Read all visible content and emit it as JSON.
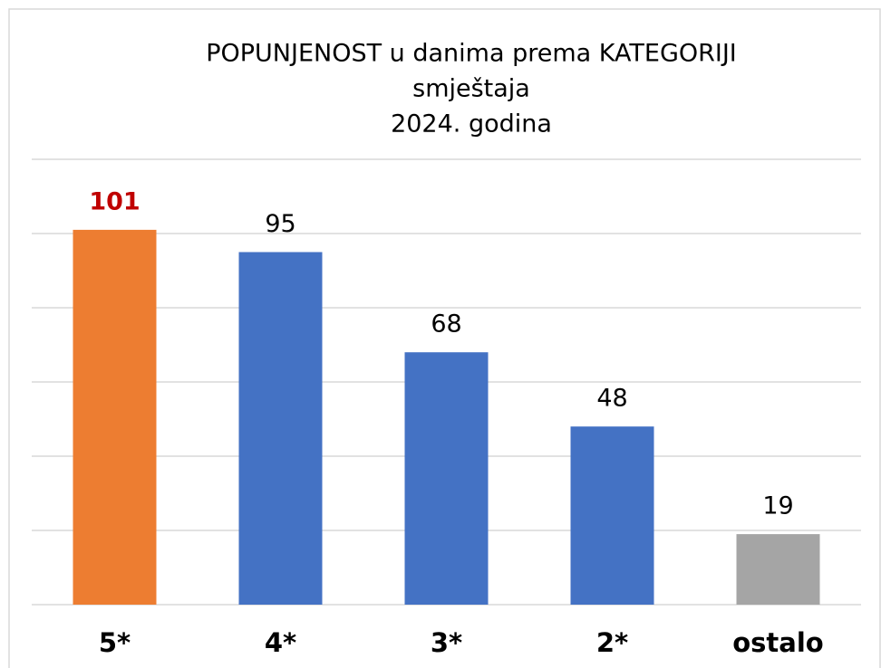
{
  "chart_data": {
    "type": "bar",
    "title": [
      "POPUNJENOST u danima prema KATEGORIJI",
      "smještaja",
      "2024. godina"
    ],
    "categories": [
      "5*",
      "4*",
      "3*",
      "2*",
      "ostalo"
    ],
    "values": [
      101,
      95,
      68,
      48,
      19
    ],
    "colors": [
      "#ed7d31",
      "#4472c4",
      "#4472c4",
      "#4472c4",
      "#a5a5a5"
    ],
    "value_label_colors": [
      "#c00000",
      "#000000",
      "#000000",
      "#000000",
      "#000000"
    ],
    "ylim": [
      0,
      120
    ],
    "yticks": [
      0,
      20,
      40,
      60,
      80,
      100,
      120
    ],
    "grid": true
  }
}
